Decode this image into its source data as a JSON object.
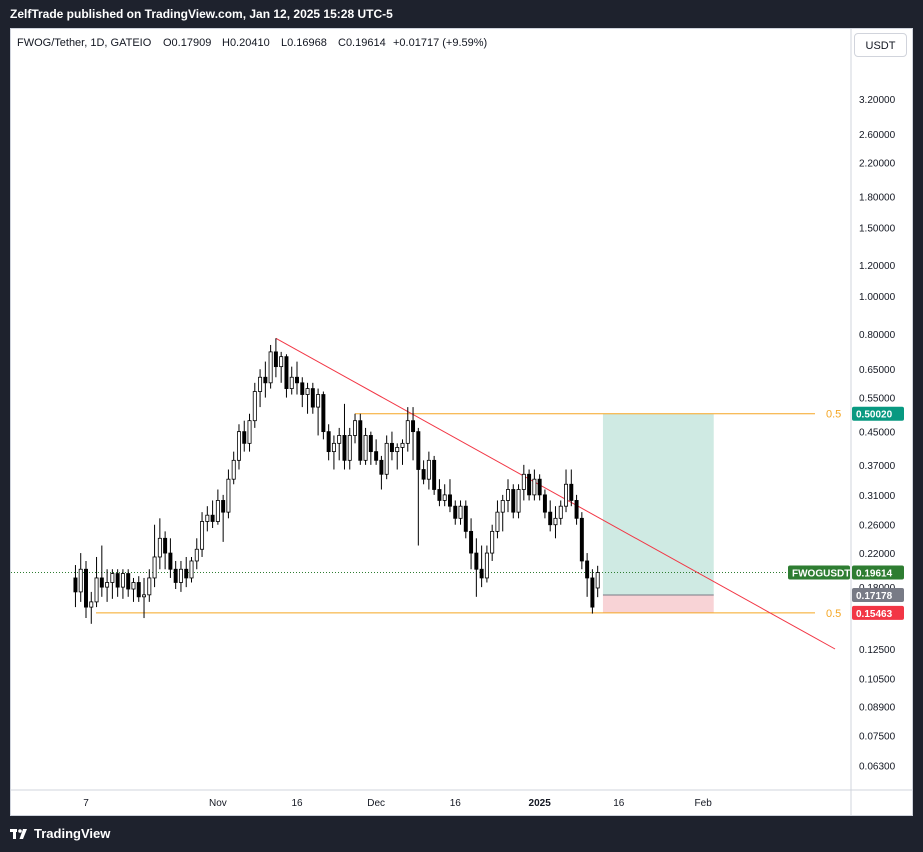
{
  "header": {
    "published": "ZelfTrade published on TradingView.com, Jan 12, 2025 15:28 UTC-5"
  },
  "legend": {
    "symbol": "FWOG/Tether, 1D, GATEIO",
    "open": "O0.17909",
    "high": "H0.20410",
    "low": "L0.16968",
    "close": "C0.19614",
    "change": "+0.01717 (+9.59%)"
  },
  "currency_button": "USDT",
  "footer": {
    "brand": "TradingView"
  },
  "colors": {
    "up": "#ffffff",
    "down": "#000000",
    "wick": "#000000",
    "trendline": "#f23645",
    "fib": "#f5a623",
    "profit_zone": "#cfeae3",
    "loss_zone": "#f8d3d6",
    "last_price_label": "#2e7d32",
    "target_label": "#089981",
    "stop_label": "#f23645",
    "entry_label": "#787b86"
  },
  "chart_data": {
    "type": "candlestick",
    "symbol": "FWOG/Tether",
    "interval": "1D",
    "exchange": "GATEIO",
    "y_scale": "log",
    "y_ticks": [
      "3.20000",
      "2.60000",
      "2.20000",
      "1.80000",
      "1.50000",
      "1.20000",
      "1.00000",
      "0.80000",
      "0.65000",
      "0.55000",
      "0.45000",
      "0.37000",
      "0.31000",
      "0.26000",
      "0.22000",
      "0.18000",
      "0.12500",
      "0.10500",
      "0.08900",
      "0.07500",
      "0.06300"
    ],
    "x_ticks": [
      "7",
      "Nov",
      "16",
      "Dec",
      "16",
      "2025",
      "16",
      "Feb"
    ],
    "price_labels": [
      {
        "text": "FWOGUSDT",
        "role": "symbol"
      },
      {
        "text": "0.19614",
        "role": "last"
      },
      {
        "text": "0.50020",
        "role": "target"
      },
      {
        "text": "0.17178",
        "role": "entry"
      },
      {
        "text": "0.15463",
        "role": "stop"
      }
    ],
    "fib_levels": [
      {
        "label": "0.5",
        "price": 0.5002
      },
      {
        "label": "0.5",
        "price": 0.15463
      }
    ],
    "trendline": {
      "start": {
        "date": "2024-11-12",
        "price": 0.78
      },
      "end": {
        "date": "2025-02-26",
        "price": 0.125
      }
    },
    "position": {
      "type": "long",
      "entry": 0.17178,
      "target": 0.5002,
      "stop": 0.15463,
      "start_date": "2025-01-13",
      "end_date": "2025-02-03"
    },
    "candles": [
      {
        "date": "2024-10-05",
        "o": 0.19,
        "h": 0.205,
        "l": 0.16,
        "c": 0.175
      },
      {
        "date": "2024-10-06",
        "o": 0.175,
        "h": 0.22,
        "l": 0.165,
        "c": 0.2
      },
      {
        "date": "2024-10-07",
        "o": 0.2,
        "h": 0.21,
        "l": 0.15,
        "c": 0.16
      },
      {
        "date": "2024-10-08",
        "o": 0.16,
        "h": 0.175,
        "l": 0.145,
        "c": 0.165
      },
      {
        "date": "2024-10-09",
        "o": 0.165,
        "h": 0.215,
        "l": 0.16,
        "c": 0.19
      },
      {
        "date": "2024-10-10",
        "o": 0.19,
        "h": 0.23,
        "l": 0.17,
        "c": 0.18
      },
      {
        "date": "2024-10-11",
        "o": 0.18,
        "h": 0.2,
        "l": 0.165,
        "c": 0.185
      },
      {
        "date": "2024-10-12",
        "o": 0.185,
        "h": 0.2,
        "l": 0.168,
        "c": 0.195
      },
      {
        "date": "2024-10-13",
        "o": 0.195,
        "h": 0.2,
        "l": 0.17,
        "c": 0.18
      },
      {
        "date": "2024-10-14",
        "o": 0.18,
        "h": 0.2,
        "l": 0.168,
        "c": 0.195
      },
      {
        "date": "2024-10-15",
        "o": 0.195,
        "h": 0.2,
        "l": 0.17,
        "c": 0.178
      },
      {
        "date": "2024-10-16",
        "o": 0.178,
        "h": 0.19,
        "l": 0.165,
        "c": 0.185
      },
      {
        "date": "2024-10-17",
        "o": 0.185,
        "h": 0.192,
        "l": 0.165,
        "c": 0.17
      },
      {
        "date": "2024-10-18",
        "o": 0.17,
        "h": 0.19,
        "l": 0.15,
        "c": 0.172
      },
      {
        "date": "2024-10-19",
        "o": 0.172,
        "h": 0.2,
        "l": 0.165,
        "c": 0.19
      },
      {
        "date": "2024-10-20",
        "o": 0.19,
        "h": 0.26,
        "l": 0.18,
        "c": 0.215
      },
      {
        "date": "2024-10-21",
        "o": 0.215,
        "h": 0.27,
        "l": 0.2,
        "c": 0.24
      },
      {
        "date": "2024-10-22",
        "o": 0.24,
        "h": 0.25,
        "l": 0.2,
        "c": 0.22
      },
      {
        "date": "2024-10-23",
        "o": 0.22,
        "h": 0.24,
        "l": 0.19,
        "c": 0.2
      },
      {
        "date": "2024-10-24",
        "o": 0.2,
        "h": 0.21,
        "l": 0.178,
        "c": 0.185
      },
      {
        "date": "2024-10-25",
        "o": 0.185,
        "h": 0.21,
        "l": 0.175,
        "c": 0.2
      },
      {
        "date": "2024-10-26",
        "o": 0.2,
        "h": 0.215,
        "l": 0.18,
        "c": 0.19
      },
      {
        "date": "2024-10-27",
        "o": 0.19,
        "h": 0.215,
        "l": 0.185,
        "c": 0.21
      },
      {
        "date": "2024-10-28",
        "o": 0.21,
        "h": 0.24,
        "l": 0.2,
        "c": 0.225
      },
      {
        "date": "2024-10-29",
        "o": 0.225,
        "h": 0.28,
        "l": 0.215,
        "c": 0.265
      },
      {
        "date": "2024-10-30",
        "o": 0.265,
        "h": 0.29,
        "l": 0.25,
        "c": 0.275
      },
      {
        "date": "2024-10-31",
        "o": 0.275,
        "h": 0.3,
        "l": 0.255,
        "c": 0.265
      },
      {
        "date": "2024-11-01",
        "o": 0.265,
        "h": 0.32,
        "l": 0.26,
        "c": 0.3
      },
      {
        "date": "2024-11-02",
        "o": 0.3,
        "h": 0.31,
        "l": 0.235,
        "c": 0.28
      },
      {
        "date": "2024-11-03",
        "o": 0.28,
        "h": 0.36,
        "l": 0.27,
        "c": 0.34
      },
      {
        "date": "2024-11-04",
        "o": 0.34,
        "h": 0.4,
        "l": 0.33,
        "c": 0.38
      },
      {
        "date": "2024-11-05",
        "o": 0.38,
        "h": 0.47,
        "l": 0.36,
        "c": 0.45
      },
      {
        "date": "2024-11-06",
        "o": 0.45,
        "h": 0.48,
        "l": 0.4,
        "c": 0.42
      },
      {
        "date": "2024-11-07",
        "o": 0.42,
        "h": 0.5,
        "l": 0.4,
        "c": 0.48
      },
      {
        "date": "2024-11-08",
        "o": 0.48,
        "h": 0.6,
        "l": 0.46,
        "c": 0.57
      },
      {
        "date": "2024-11-09",
        "o": 0.57,
        "h": 0.65,
        "l": 0.52,
        "c": 0.62
      },
      {
        "date": "2024-11-10",
        "o": 0.62,
        "h": 0.68,
        "l": 0.55,
        "c": 0.6
      },
      {
        "date": "2024-11-11",
        "o": 0.6,
        "h": 0.75,
        "l": 0.58,
        "c": 0.72
      },
      {
        "date": "2024-11-12",
        "o": 0.72,
        "h": 0.78,
        "l": 0.62,
        "c": 0.66
      },
      {
        "date": "2024-11-13",
        "o": 0.66,
        "h": 0.72,
        "l": 0.6,
        "c": 0.7
      },
      {
        "date": "2024-11-14",
        "o": 0.7,
        "h": 0.71,
        "l": 0.55,
        "c": 0.58
      },
      {
        "date": "2024-11-15",
        "o": 0.58,
        "h": 0.66,
        "l": 0.56,
        "c": 0.62
      },
      {
        "date": "2024-11-16",
        "o": 0.62,
        "h": 0.68,
        "l": 0.56,
        "c": 0.6
      },
      {
        "date": "2024-11-17",
        "o": 0.6,
        "h": 0.62,
        "l": 0.52,
        "c": 0.56
      },
      {
        "date": "2024-11-18",
        "o": 0.56,
        "h": 0.6,
        "l": 0.5,
        "c": 0.58
      },
      {
        "date": "2024-11-19",
        "o": 0.58,
        "h": 0.6,
        "l": 0.5,
        "c": 0.52
      },
      {
        "date": "2024-11-20",
        "o": 0.52,
        "h": 0.58,
        "l": 0.44,
        "c": 0.56
      },
      {
        "date": "2024-11-21",
        "o": 0.56,
        "h": 0.57,
        "l": 0.43,
        "c": 0.45
      },
      {
        "date": "2024-11-22",
        "o": 0.45,
        "h": 0.47,
        "l": 0.38,
        "c": 0.4
      },
      {
        "date": "2024-11-23",
        "o": 0.4,
        "h": 0.44,
        "l": 0.36,
        "c": 0.42
      },
      {
        "date": "2024-11-24",
        "o": 0.42,
        "h": 0.46,
        "l": 0.38,
        "c": 0.44
      },
      {
        "date": "2024-11-25",
        "o": 0.44,
        "h": 0.53,
        "l": 0.36,
        "c": 0.38
      },
      {
        "date": "2024-11-26",
        "o": 0.38,
        "h": 0.46,
        "l": 0.36,
        "c": 0.44
      },
      {
        "date": "2024-11-27",
        "o": 0.44,
        "h": 0.5,
        "l": 0.42,
        "c": 0.48
      },
      {
        "date": "2024-11-28",
        "o": 0.48,
        "h": 0.5,
        "l": 0.37,
        "c": 0.38
      },
      {
        "date": "2024-11-29",
        "o": 0.38,
        "h": 0.46,
        "l": 0.37,
        "c": 0.44
      },
      {
        "date": "2024-11-30",
        "o": 0.44,
        "h": 0.45,
        "l": 0.37,
        "c": 0.4
      },
      {
        "date": "2024-12-01",
        "o": 0.4,
        "h": 0.43,
        "l": 0.37,
        "c": 0.38
      },
      {
        "date": "2024-12-02",
        "o": 0.38,
        "h": 0.39,
        "l": 0.32,
        "c": 0.35
      },
      {
        "date": "2024-12-03",
        "o": 0.35,
        "h": 0.44,
        "l": 0.34,
        "c": 0.42
      },
      {
        "date": "2024-12-04",
        "o": 0.42,
        "h": 0.45,
        "l": 0.38,
        "c": 0.4
      },
      {
        "date": "2024-12-05",
        "o": 0.4,
        "h": 0.42,
        "l": 0.36,
        "c": 0.41
      },
      {
        "date": "2024-12-06",
        "o": 0.41,
        "h": 0.43,
        "l": 0.37,
        "c": 0.42
      },
      {
        "date": "2024-12-07",
        "o": 0.42,
        "h": 0.52,
        "l": 0.4,
        "c": 0.48
      },
      {
        "date": "2024-12-08",
        "o": 0.48,
        "h": 0.52,
        "l": 0.38,
        "c": 0.45
      },
      {
        "date": "2024-12-09",
        "o": 0.45,
        "h": 0.46,
        "l": 0.23,
        "c": 0.36
      },
      {
        "date": "2024-12-10",
        "o": 0.36,
        "h": 0.38,
        "l": 0.33,
        "c": 0.34
      },
      {
        "date": "2024-12-11",
        "o": 0.34,
        "h": 0.4,
        "l": 0.32,
        "c": 0.38
      },
      {
        "date": "2024-12-12",
        "o": 0.38,
        "h": 0.39,
        "l": 0.31,
        "c": 0.32
      },
      {
        "date": "2024-12-13",
        "o": 0.32,
        "h": 0.34,
        "l": 0.29,
        "c": 0.3
      },
      {
        "date": "2024-12-14",
        "o": 0.3,
        "h": 0.33,
        "l": 0.29,
        "c": 0.31
      },
      {
        "date": "2024-12-15",
        "o": 0.31,
        "h": 0.34,
        "l": 0.28,
        "c": 0.29
      },
      {
        "date": "2024-12-16",
        "o": 0.29,
        "h": 0.3,
        "l": 0.26,
        "c": 0.27
      },
      {
        "date": "2024-12-17",
        "o": 0.27,
        "h": 0.3,
        "l": 0.26,
        "c": 0.29
      },
      {
        "date": "2024-12-18",
        "o": 0.29,
        "h": 0.3,
        "l": 0.24,
        "c": 0.25
      },
      {
        "date": "2024-12-19",
        "o": 0.25,
        "h": 0.27,
        "l": 0.2,
        "c": 0.22
      },
      {
        "date": "2024-12-20",
        "o": 0.22,
        "h": 0.24,
        "l": 0.17,
        "c": 0.2
      },
      {
        "date": "2024-12-21",
        "o": 0.2,
        "h": 0.23,
        "l": 0.18,
        "c": 0.19
      },
      {
        "date": "2024-12-22",
        "o": 0.19,
        "h": 0.23,
        "l": 0.185,
        "c": 0.22
      },
      {
        "date": "2024-12-23",
        "o": 0.22,
        "h": 0.26,
        "l": 0.21,
        "c": 0.25
      },
      {
        "date": "2024-12-24",
        "o": 0.25,
        "h": 0.3,
        "l": 0.24,
        "c": 0.28
      },
      {
        "date": "2024-12-25",
        "o": 0.28,
        "h": 0.31,
        "l": 0.25,
        "c": 0.3
      },
      {
        "date": "2024-12-26",
        "o": 0.3,
        "h": 0.34,
        "l": 0.28,
        "c": 0.32
      },
      {
        "date": "2024-12-27",
        "o": 0.32,
        "h": 0.33,
        "l": 0.27,
        "c": 0.28
      },
      {
        "date": "2024-12-28",
        "o": 0.28,
        "h": 0.33,
        "l": 0.27,
        "c": 0.32
      },
      {
        "date": "2024-12-29",
        "o": 0.32,
        "h": 0.37,
        "l": 0.3,
        "c": 0.35
      },
      {
        "date": "2024-12-30",
        "o": 0.35,
        "h": 0.36,
        "l": 0.3,
        "c": 0.31
      },
      {
        "date": "2024-12-31",
        "o": 0.31,
        "h": 0.36,
        "l": 0.3,
        "c": 0.34
      },
      {
        "date": "2025-01-01",
        "o": 0.34,
        "h": 0.35,
        "l": 0.3,
        "c": 0.31
      },
      {
        "date": "2025-01-02",
        "o": 0.31,
        "h": 0.32,
        "l": 0.27,
        "c": 0.28
      },
      {
        "date": "2025-01-03",
        "o": 0.28,
        "h": 0.3,
        "l": 0.25,
        "c": 0.26
      },
      {
        "date": "2025-01-04",
        "o": 0.26,
        "h": 0.29,
        "l": 0.24,
        "c": 0.27
      },
      {
        "date": "2025-01-05",
        "o": 0.27,
        "h": 0.3,
        "l": 0.26,
        "c": 0.29
      },
      {
        "date": "2025-01-06",
        "o": 0.29,
        "h": 0.36,
        "l": 0.28,
        "c": 0.33
      },
      {
        "date": "2025-01-07",
        "o": 0.33,
        "h": 0.36,
        "l": 0.29,
        "c": 0.3
      },
      {
        "date": "2025-01-08",
        "o": 0.3,
        "h": 0.31,
        "l": 0.26,
        "c": 0.27
      },
      {
        "date": "2025-01-09",
        "o": 0.27,
        "h": 0.28,
        "l": 0.2,
        "c": 0.21
      },
      {
        "date": "2025-01-10",
        "o": 0.21,
        "h": 0.22,
        "l": 0.17,
        "c": 0.19
      },
      {
        "date": "2025-01-11",
        "o": 0.19,
        "h": 0.2,
        "l": 0.154,
        "c": 0.16
      },
      {
        "date": "2025-01-12",
        "o": 0.17909,
        "h": 0.2041,
        "l": 0.16968,
        "c": 0.19614
      }
    ]
  }
}
